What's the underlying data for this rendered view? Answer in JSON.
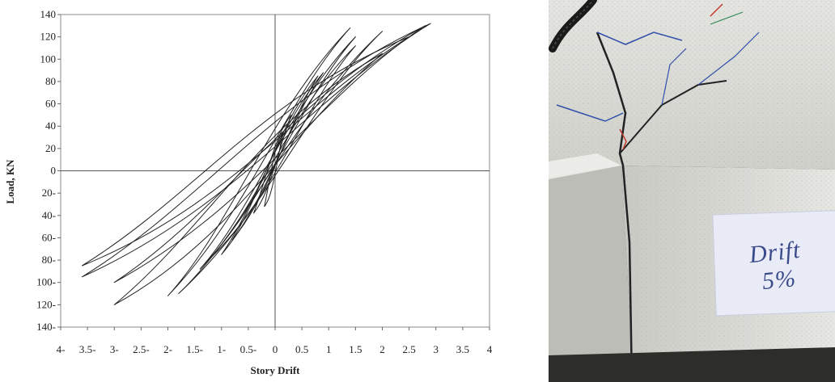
{
  "chart_data": {
    "type": "line",
    "title": "",
    "xlabel": "Story Drift",
    "ylabel": "Load, KN",
    "xlim": [
      -4,
      4
    ],
    "ylim": [
      -140,
      140
    ],
    "x_ticks": [
      -4,
      -3.5,
      -3,
      -2.5,
      -2,
      -1.5,
      -1,
      -0.5,
      0,
      0.5,
      1,
      1.5,
      2,
      2.5,
      3,
      3.5,
      4
    ],
    "x_tick_labels": [
      "4-",
      "3.5-",
      "3-",
      "2.5-",
      "2-",
      "1.5-",
      "1-",
      "0.5-",
      "0",
      "0.5",
      "1",
      "1.5",
      "2",
      "2.5",
      "3",
      "3.5",
      "4"
    ],
    "y_ticks": [
      -140,
      -120,
      -100,
      -80,
      -60,
      -40,
      -20,
      0,
      20,
      40,
      60,
      80,
      100,
      120,
      140
    ],
    "y_tick_labels": [
      "140-",
      "120-",
      "100-",
      "80-",
      "60-",
      "40-",
      "20-",
      "0",
      "20",
      "40",
      "60",
      "80",
      "100",
      "120",
      "140"
    ],
    "grid": false,
    "legend": "none",
    "line_color": "#222222",
    "loops": [
      {
        "peak_pos": [
          0.15,
          35
        ],
        "peak_neg": [
          -0.2,
          -32
        ],
        "pinch": 0.6
      },
      {
        "peak_pos": [
          0.3,
          50
        ],
        "peak_neg": [
          -0.4,
          -38
        ],
        "pinch": 0.6
      },
      {
        "peak_pos": [
          0.8,
          85
        ],
        "peak_neg": [
          -0.8,
          -62
        ],
        "pinch": 0.7
      },
      {
        "peak_pos": [
          0.9,
          88
        ],
        "peak_neg": [
          -1.0,
          -75
        ],
        "pinch": 0.7
      },
      {
        "peak_pos": [
          1.5,
          112
        ],
        "peak_neg": [
          -1.2,
          -78
        ],
        "pinch": 0.8
      },
      {
        "peak_pos": [
          1.5,
          120
        ],
        "peak_neg": [
          -1.4,
          -88
        ],
        "pinch": 0.8
      },
      {
        "peak_pos": [
          2.0,
          125
        ],
        "peak_neg": [
          -1.8,
          -110
        ],
        "pinch": 0.85
      },
      {
        "peak_pos": [
          1.4,
          128
        ],
        "peak_neg": [
          -2.0,
          -112
        ],
        "pinch": 0.9
      },
      {
        "peak_pos": [
          2.8,
          130
        ],
        "peak_neg": [
          -3.0,
          -100
        ],
        "pinch": 1.0
      },
      {
        "peak_pos": [
          2.9,
          132
        ],
        "peak_neg": [
          -3.6,
          -95
        ],
        "pinch": 1.1
      },
      {
        "peak_pos": [
          2.5,
          120
        ],
        "peak_neg": [
          -3.6,
          -85
        ],
        "pinch": 1.1
      },
      {
        "peak_pos": [
          2.0,
          105
        ],
        "peak_neg": [
          -3.0,
          -120
        ],
        "pinch": 1.2
      }
    ]
  },
  "photo": {
    "label_line1": "Drift",
    "label_line2": "5%",
    "concrete_color": "#d8d8d4",
    "crack_marker_color": "#2f4fa8",
    "background_color": "#3a3a36"
  }
}
